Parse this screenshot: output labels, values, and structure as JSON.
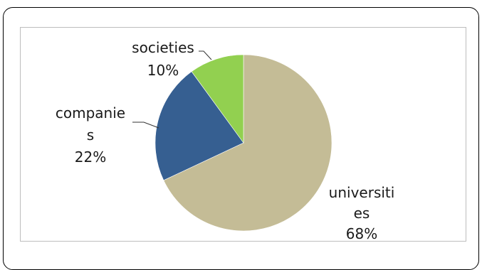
{
  "chart_data": {
    "type": "pie",
    "categories": [
      "universities",
      "companies",
      "societies"
    ],
    "values": [
      68,
      22,
      10
    ],
    "colors": [
      "#C4BC96",
      "#365F91",
      "#92D050"
    ],
    "labels": [
      {
        "lines": [
          "universiti",
          "es",
          "68%"
        ]
      },
      {
        "lines": [
          "companie",
          "s",
          "22%"
        ]
      },
      {
        "lines": [
          "societies",
          "10%"
        ]
      }
    ],
    "start": "12 o'clock",
    "direction": "clockwise",
    "legend": "none"
  }
}
